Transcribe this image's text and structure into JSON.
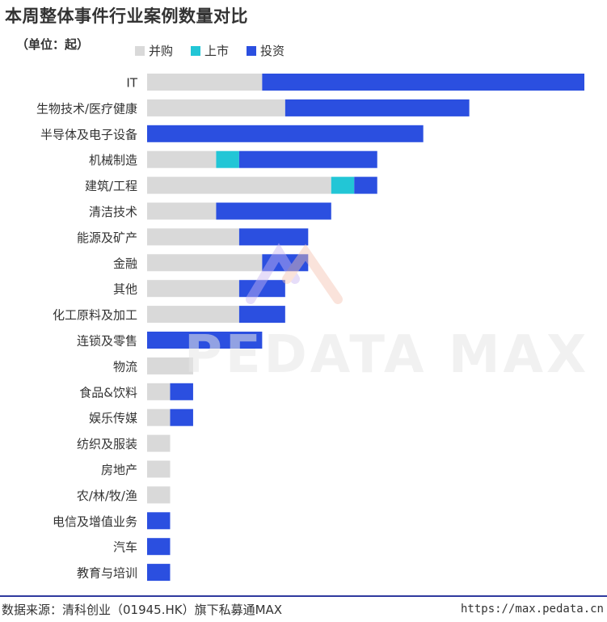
{
  "title": "本周整体事件行业案例数量对比",
  "unit_label": "（单位：起）",
  "legend": [
    {
      "name": "并购",
      "color": "#d9d9d9"
    },
    {
      "name": "上市",
      "color": "#22c6d6"
    },
    {
      "name": "投资",
      "color": "#2b4fe0"
    }
  ],
  "watermark": "PEDATA MAX",
  "footer": {
    "source": "数据来源：清科创业（01945.HK）旗下私募通MAX",
    "url": "https://max.pedata.cn"
  },
  "chart_data": {
    "type": "bar",
    "orientation": "horizontal",
    "stacked": true,
    "title": "本周整体事件行业案例数量对比",
    "categories": [
      "IT",
      "生物技术/医疗健康",
      "半导体及电子设备",
      "机械制造",
      "建筑/工程",
      "清洁技术",
      "能源及矿产",
      "金融",
      "其他",
      "化工原料及加工",
      "连锁及零售",
      "物流",
      "食品&饮料",
      "娱乐传媒",
      "纺织及服装",
      "房地产",
      "农/林/牧/渔",
      "电信及增值业务",
      "汽车",
      "教育与培训"
    ],
    "series": [
      {
        "name": "并购",
        "color": "#d9d9d9",
        "values": [
          5,
          6,
          0,
          3,
          8,
          3,
          4,
          5,
          4,
          4,
          0,
          2,
          1,
          1,
          1,
          1,
          1,
          0,
          0,
          0
        ]
      },
      {
        "name": "上市",
        "color": "#22c6d6",
        "values": [
          0,
          0,
          0,
          1,
          1,
          0,
          0,
          0,
          0,
          0,
          0,
          0,
          0,
          0,
          0,
          0,
          0,
          0,
          0,
          0
        ]
      },
      {
        "name": "投资",
        "color": "#2b4fe0",
        "values": [
          14,
          8,
          12,
          6,
          1,
          5,
          3,
          2,
          2,
          2,
          5,
          0,
          1,
          1,
          0,
          0,
          0,
          1,
          1,
          1
        ]
      }
    ],
    "xlim": [
      0,
      19
    ],
    "grid": false,
    "legend_position": "top"
  }
}
